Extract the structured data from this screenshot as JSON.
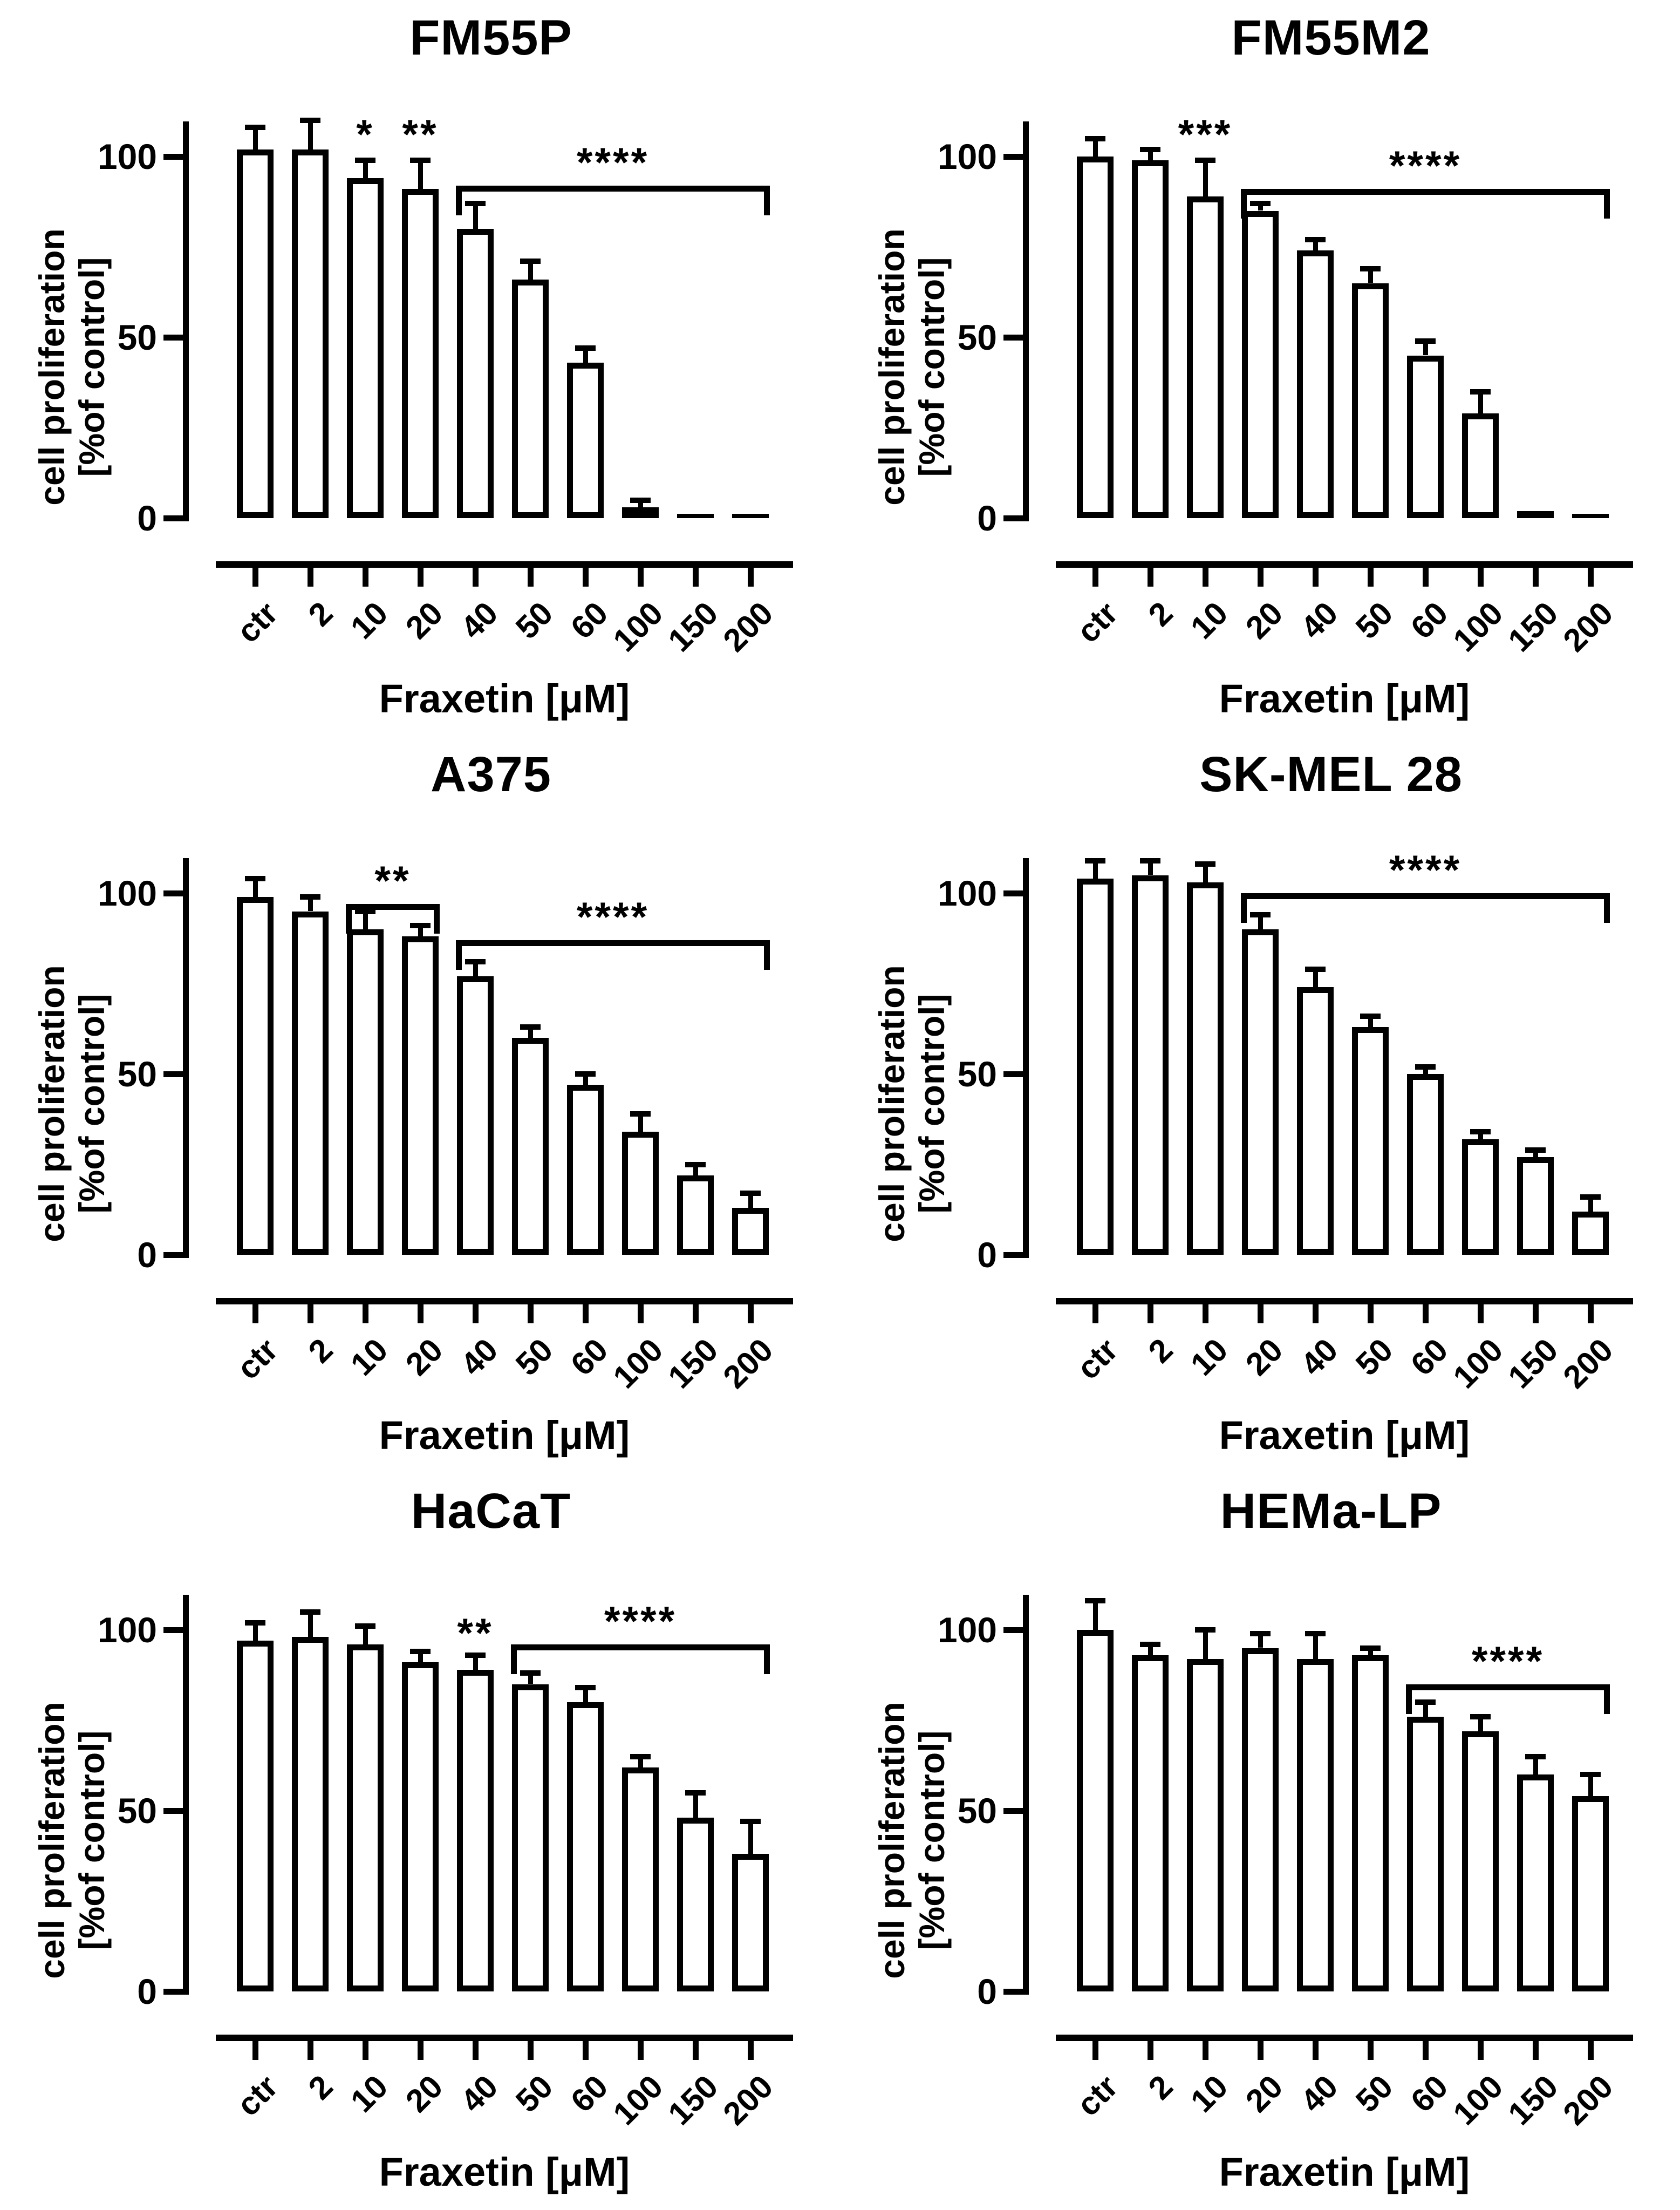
{
  "figure": {
    "ylabel_line1": "cell proliferation",
    "ylabel_line2": "[%of control]",
    "xlabel": "Fraxetin [μM]",
    "yticks": [
      0,
      50,
      100
    ],
    "categories": [
      "ctr",
      "2",
      "10",
      "20",
      "40",
      "50",
      "60",
      "100",
      "150",
      "200"
    ]
  },
  "chart_data": [
    {
      "type": "bar",
      "title": "FM55P",
      "xlabel": "Fraxetin [μM]",
      "ylabel": "cell proliferation [%of control]",
      "ylim": [
        0,
        110
      ],
      "yticks": [
        0,
        50,
        100
      ],
      "categories": [
        "ctr",
        "2",
        "10",
        "20",
        "40",
        "50",
        "60",
        "100",
        "150",
        "200"
      ],
      "values": [
        102,
        102,
        94,
        91,
        80,
        66,
        43,
        3,
        1,
        1
      ],
      "errors": [
        6,
        8,
        5,
        8,
        7,
        5,
        4,
        2,
        0,
        0
      ],
      "stars": [
        {
          "bar": 2,
          "label": "*",
          "value": 106
        },
        {
          "bar": 3,
          "label": "**",
          "value": 106
        }
      ],
      "brackets": [
        {
          "from": 4,
          "to": 9,
          "label": "****",
          "value": 92
        }
      ]
    },
    {
      "type": "bar",
      "title": "FM55M2",
      "xlabel": "Fraxetin [μM]",
      "ylabel": "cell proliferation [%of control]",
      "ylim": [
        0,
        110
      ],
      "yticks": [
        0,
        50,
        100
      ],
      "categories": [
        "ctr",
        "2",
        "10",
        "20",
        "40",
        "50",
        "60",
        "100",
        "150",
        "200"
      ],
      "values": [
        100,
        99,
        89,
        85,
        74,
        65,
        45,
        29,
        2,
        1
      ],
      "errors": [
        5,
        3,
        10,
        2,
        3,
        4,
        4,
        6,
        0,
        0
      ],
      "stars": [
        {
          "bar": 2,
          "label": "***",
          "value": 106
        }
      ],
      "brackets": [
        {
          "from": 3,
          "to": 9,
          "label": "****",
          "value": 91
        }
      ]
    },
    {
      "type": "bar",
      "title": "A375",
      "xlabel": "Fraxetin [μM]",
      "ylabel": "cell proliferation [%of control]",
      "ylim": [
        0,
        110
      ],
      "yticks": [
        0,
        50,
        100
      ],
      "categories": [
        "ctr",
        "2",
        "10",
        "20",
        "40",
        "50",
        "60",
        "100",
        "150",
        "200"
      ],
      "values": [
        99,
        95,
        90,
        88,
        77,
        60,
        47,
        34,
        22,
        13
      ],
      "errors": [
        5,
        4,
        5,
        3,
        4,
        3,
        3,
        5,
        3,
        4
      ],
      "stars": [],
      "brackets": [
        {
          "from": 2,
          "to": 3,
          "label": "**",
          "value": 97
        },
        {
          "from": 4,
          "to": 9,
          "label": "****",
          "value": 87
        }
      ]
    },
    {
      "type": "bar",
      "title": "SK-MEL 28",
      "xlabel": "Fraxetin [μM]",
      "ylabel": "cell proliferation [%of control]",
      "ylim": [
        0,
        110
      ],
      "yticks": [
        0,
        50,
        100
      ],
      "categories": [
        "ctr",
        "2",
        "10",
        "20",
        "40",
        "50",
        "60",
        "100",
        "150",
        "200"
      ],
      "values": [
        104,
        105,
        103,
        90,
        74,
        63,
        50,
        32,
        27,
        12
      ],
      "errors": [
        5,
        4,
        5,
        4,
        5,
        3,
        2,
        2,
        2,
        4
      ],
      "stars": [],
      "brackets": [
        {
          "from": 3,
          "to": 9,
          "label": "****",
          "value": 100
        }
      ]
    },
    {
      "type": "bar",
      "title": "HaCaT",
      "xlabel": "Fraxetin [μM]",
      "ylabel": "cell proliferation [%of control]",
      "ylim": [
        0,
        110
      ],
      "yticks": [
        0,
        50,
        100
      ],
      "categories": [
        "ctr",
        "2",
        "10",
        "20",
        "40",
        "50",
        "60",
        "100",
        "150",
        "200"
      ],
      "values": [
        97,
        98,
        96,
        91,
        89,
        85,
        80,
        62,
        48,
        38
      ],
      "errors": [
        5,
        7,
        5,
        3,
        4,
        3,
        4,
        3,
        7,
        9
      ],
      "stars": [
        {
          "bar": 4,
          "label": "**",
          "value": 99
        }
      ],
      "brackets": [
        {
          "from": 5,
          "to": 9,
          "label": "****",
          "value": 96
        }
      ]
    },
    {
      "type": "bar",
      "title": "HEMa-LP",
      "xlabel": "Fraxetin [μM]",
      "ylabel": "cell proliferation [%of control]",
      "ylim": [
        0,
        110
      ],
      "yticks": [
        0,
        50,
        100
      ],
      "categories": [
        "ctr",
        "2",
        "10",
        "20",
        "40",
        "50",
        "60",
        "100",
        "150",
        "200"
      ],
      "values": [
        100,
        93,
        92,
        95,
        92,
        93,
        76,
        72,
        60,
        54
      ],
      "errors": [
        8,
        3,
        8,
        4,
        7,
        2,
        4,
        4,
        5,
        6
      ],
      "stars": [],
      "brackets": [
        {
          "from": 6,
          "to": 9,
          "label": "****",
          "value": 85
        }
      ]
    }
  ]
}
